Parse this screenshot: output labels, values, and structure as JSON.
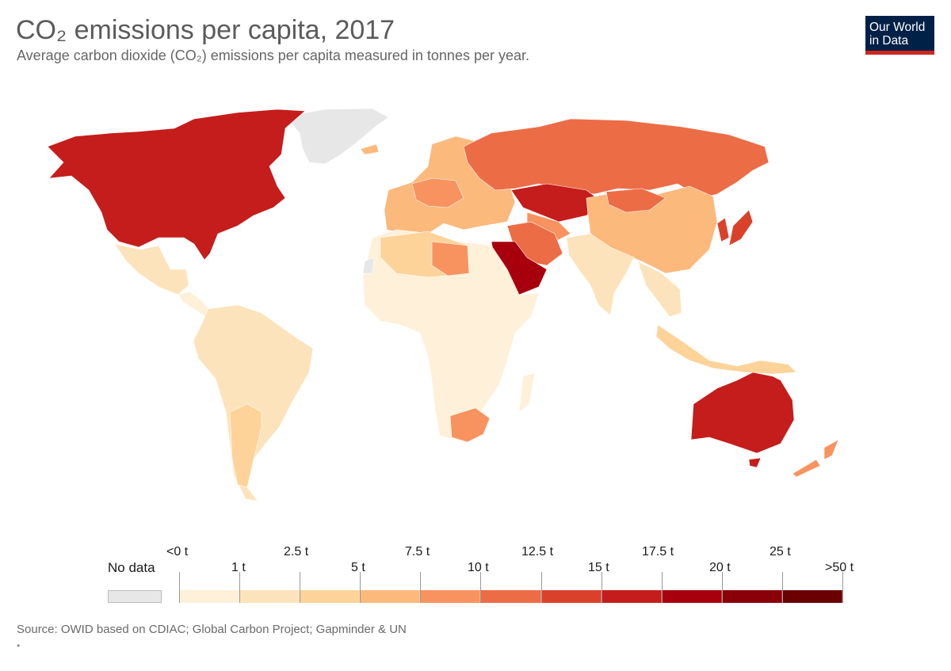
{
  "header": {
    "title": "CO₂ emissions per capita, 2017",
    "subtitle": "Average carbon dioxide (CO₂) emissions per capita measured in tonnes per year."
  },
  "logo": {
    "line1": "Our World",
    "line2": "in Data"
  },
  "legend": {
    "no_data_label": "No data",
    "no_data_color": "#e7e7e7",
    "upper_labels": [
      "<0 t",
      "2.5 t",
      "7.5 t",
      "12.5 t",
      "17.5 t",
      "25 t"
    ],
    "lower_labels": [
      "1 t",
      "5 t",
      "10 t",
      "15 t",
      "20 t",
      ">50 t"
    ],
    "bin_colors": [
      "#fef0d9",
      "#fde3bb",
      "#fdd39a",
      "#fcb97c",
      "#f8935f",
      "#ec6c46",
      "#d9412b",
      "#c41d1b",
      "#a7000c",
      "#8a0009",
      "#6b0003"
    ]
  },
  "source": "Source: OWID based on CDIAC; Global Carbon Project; Gapminder & UN",
  "footnote": "•",
  "regions": {
    "greenland": {
      "value_band": "No data",
      "color": "#e7e7e7"
    },
    "north_america": {
      "value_band": "15 t",
      "color": "#c41d1b"
    },
    "mexico": {
      "value_band": "2.5 t",
      "color": "#fde3bb"
    },
    "south_america": {
      "value_band": "1 t",
      "color": "#fde3bb"
    },
    "russia": {
      "value_band": "10 t",
      "color": "#ec6c46"
    },
    "kazakhstan": {
      "value_band": "15 t",
      "color": "#c41d1b"
    },
    "china": {
      "value_band": "5 t",
      "color": "#fcb97c"
    },
    "saudi_arabia": {
      "value_band": "17.5 t",
      "color": "#a7000c"
    },
    "africa": {
      "value_band": "<0 t",
      "color": "#fef0d9"
    },
    "south_africa": {
      "value_band": "7.5 t",
      "color": "#f8935f"
    },
    "libya": {
      "value_band": "7.5 t",
      "color": "#f8935f"
    },
    "europe": {
      "value_band": "5 t",
      "color": "#fcb97c"
    },
    "india": {
      "value_band": "1 t",
      "color": "#fde3bb"
    },
    "australia": {
      "value_band": "15 t",
      "color": "#c41d1b"
    },
    "new_zealand": {
      "value_band": "7.5 t",
      "color": "#f8935f"
    }
  }
}
